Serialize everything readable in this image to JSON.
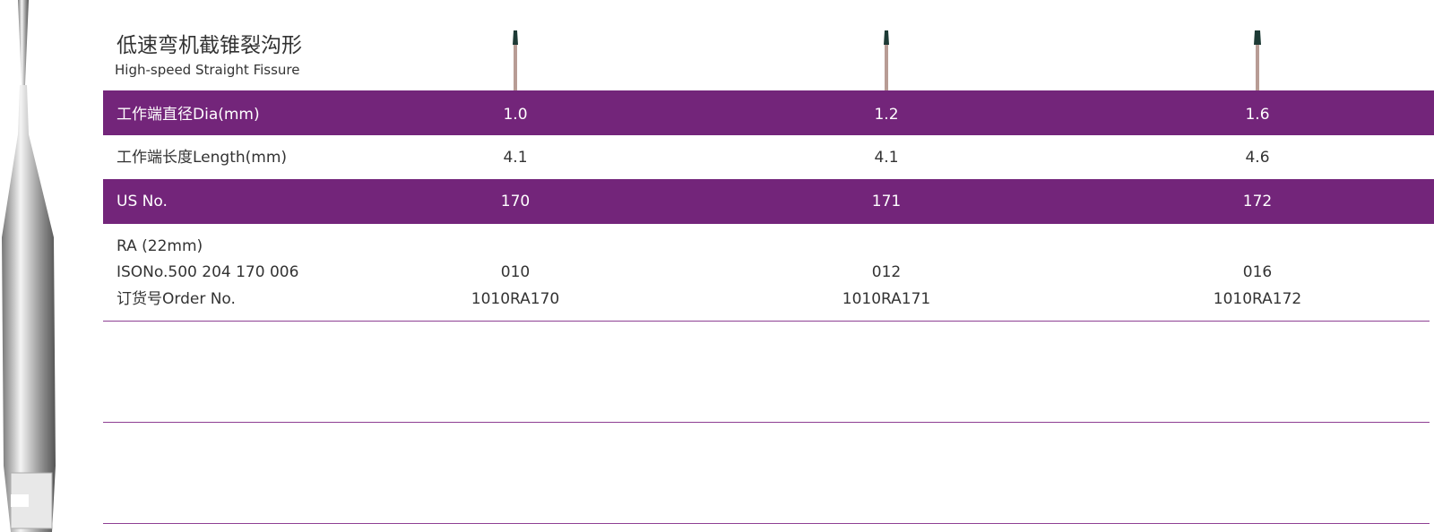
{
  "header": {
    "title": "低速弯机截锥裂沟形",
    "subtitle": "High-speed Straight Fissure"
  },
  "table": {
    "rows": [
      {
        "label": "工作端直径Dia(mm)",
        "values": [
          "1.0",
          "1.2",
          "1.6"
        ]
      },
      {
        "label": "工作端长度Length(mm)",
        "values": [
          "4.1",
          "4.1",
          "4.6"
        ]
      },
      {
        "label": "US No.",
        "values": [
          "170",
          "171",
          "172"
        ]
      },
      {
        "labels": [
          "RA (22mm)",
          "ISONo.500 204 170 006",
          "订货号Order No."
        ],
        "values": [
          [
            "010",
            "1010RA170"
          ],
          [
            "012",
            "1010RA171"
          ],
          [
            "016",
            "1010RA172"
          ]
        ]
      }
    ]
  }
}
